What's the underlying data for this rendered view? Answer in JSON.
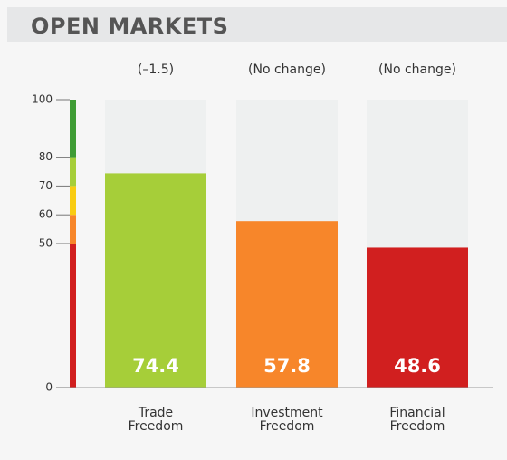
{
  "chart_data": {
    "type": "bar",
    "title": "OPEN MARKETS",
    "categories": [
      "Trade Freedom",
      "Investment Freedom",
      "Financial Freedom"
    ],
    "values": [
      74.4,
      57.8,
      48.6
    ],
    "colors": [
      "#a6ce39",
      "#f7862a",
      "#d11f1f"
    ],
    "annotations": [
      "(–1.5)",
      "(No change)",
      "(No change)"
    ],
    "ylim": [
      0,
      100
    ],
    "yticks": [
      0,
      50,
      60,
      70,
      80,
      100
    ],
    "scale_bands": [
      {
        "from": 0,
        "to": 50,
        "color": "#d11f1f"
      },
      {
        "from": 50,
        "to": 60,
        "color": "#f7862a"
      },
      {
        "from": 60,
        "to": 70,
        "color": "#f9cc12"
      },
      {
        "from": 70,
        "to": 80,
        "color": "#a6ce39"
      },
      {
        "from": 80,
        "to": 100,
        "color": "#3f9c35"
      }
    ]
  }
}
